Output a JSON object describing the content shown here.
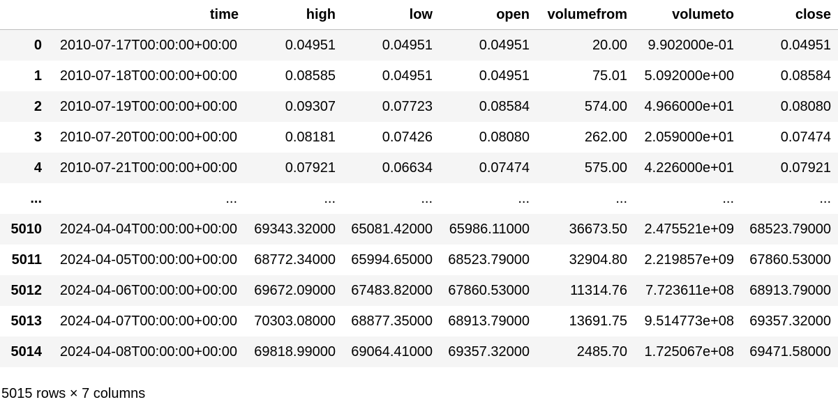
{
  "table": {
    "index_header": "",
    "columns": [
      "time",
      "high",
      "low",
      "open",
      "volumefrom",
      "volumeto",
      "close"
    ],
    "rows": [
      {
        "index": "0",
        "cells": [
          "2010-07-17T00:00:00+00:00",
          "0.04951",
          "0.04951",
          "0.04951",
          "20.00",
          "9.902000e-01",
          "0.04951"
        ]
      },
      {
        "index": "1",
        "cells": [
          "2010-07-18T00:00:00+00:00",
          "0.08585",
          "0.04951",
          "0.04951",
          "75.01",
          "5.092000e+00",
          "0.08584"
        ]
      },
      {
        "index": "2",
        "cells": [
          "2010-07-19T00:00:00+00:00",
          "0.09307",
          "0.07723",
          "0.08584",
          "574.00",
          "4.966000e+01",
          "0.08080"
        ]
      },
      {
        "index": "3",
        "cells": [
          "2010-07-20T00:00:00+00:00",
          "0.08181",
          "0.07426",
          "0.08080",
          "262.00",
          "2.059000e+01",
          "0.07474"
        ]
      },
      {
        "index": "4",
        "cells": [
          "2010-07-21T00:00:00+00:00",
          "0.07921",
          "0.06634",
          "0.07474",
          "575.00",
          "4.226000e+01",
          "0.07921"
        ]
      },
      {
        "index": "...",
        "cells": [
          "...",
          "...",
          "...",
          "...",
          "...",
          "...",
          "..."
        ]
      },
      {
        "index": "5010",
        "cells": [
          "2024-04-04T00:00:00+00:00",
          "69343.32000",
          "65081.42000",
          "65986.11000",
          "36673.50",
          "2.475521e+09",
          "68523.79000"
        ]
      },
      {
        "index": "5011",
        "cells": [
          "2024-04-05T00:00:00+00:00",
          "68772.34000",
          "65994.65000",
          "68523.79000",
          "32904.80",
          "2.219857e+09",
          "67860.53000"
        ]
      },
      {
        "index": "5012",
        "cells": [
          "2024-04-06T00:00:00+00:00",
          "69672.09000",
          "67483.82000",
          "67860.53000",
          "11314.76",
          "7.723611e+08",
          "68913.79000"
        ]
      },
      {
        "index": "5013",
        "cells": [
          "2024-04-07T00:00:00+00:00",
          "70303.08000",
          "68877.35000",
          "68913.79000",
          "13691.75",
          "9.514773e+08",
          "69357.32000"
        ]
      },
      {
        "index": "5014",
        "cells": [
          "2024-04-08T00:00:00+00:00",
          "69818.99000",
          "69064.41000",
          "69357.32000",
          "2485.70",
          "1.725067e+08",
          "69471.58000"
        ]
      }
    ]
  },
  "footer": {
    "shape_text": "5015 rows × 7 columns"
  }
}
